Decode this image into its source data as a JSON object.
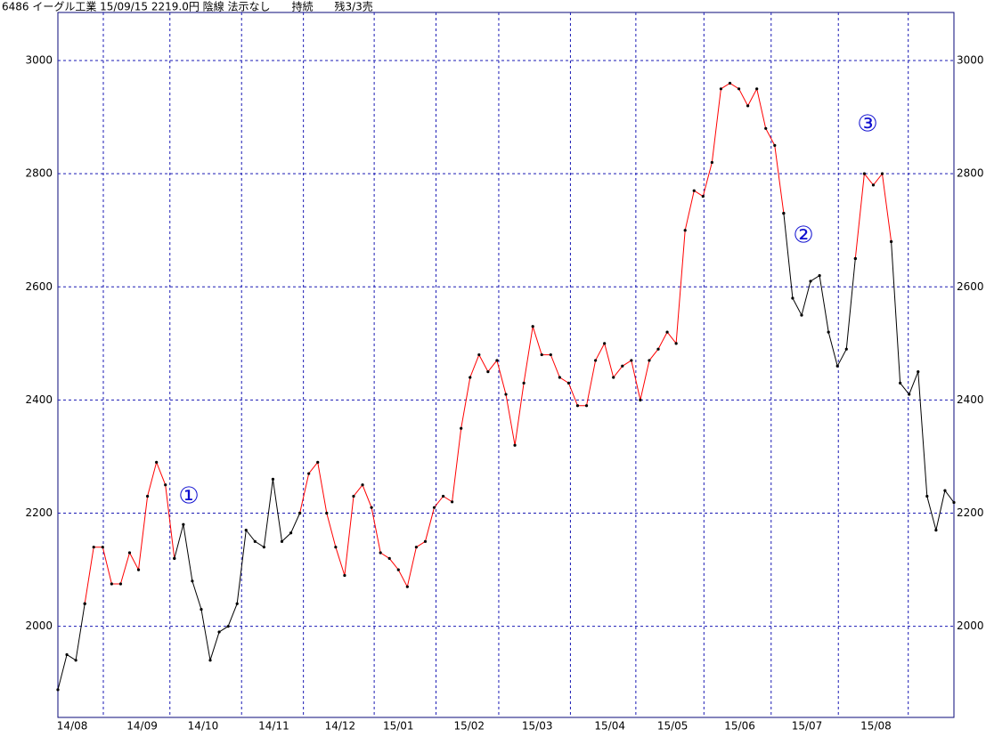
{
  "chart_data": {
    "type": "line",
    "title": "6486 イーグル工業 15/09/15 2219.0円 陰線 法示なし　　持続　　残3/3売",
    "xlim": [
      0,
      100
    ],
    "xticks": [
      {
        "value": 1.6,
        "label": "14/08"
      },
      {
        "value": 9.4,
        "label": "14/09"
      },
      {
        "value": 16.2,
        "label": "14/10"
      },
      {
        "value": 24.1,
        "label": "14/11"
      },
      {
        "value": 31.5,
        "label": "14/12"
      },
      {
        "value": 38,
        "label": "15/01"
      },
      {
        "value": 45.9,
        "label": "15/02"
      },
      {
        "value": 53.5,
        "label": "15/03"
      },
      {
        "value": 61.6,
        "label": "15/04"
      },
      {
        "value": 68.6,
        "label": "15/05"
      },
      {
        "value": 76.1,
        "label": "15/06"
      },
      {
        "value": 83.6,
        "label": "15/07"
      },
      {
        "value": 91.3,
        "label": "15/08"
      }
    ],
    "xgrid": [
      5.07,
      12.5,
      20.5,
      27.4,
      35.3,
      42.2,
      49.2,
      57.2,
      64.5,
      72.1,
      79.6,
      87.1,
      94.9
    ],
    "ylim": [
      1839,
      3085
    ],
    "yticks": [
      2000,
      2200,
      2400,
      2600,
      2800,
      3000
    ],
    "grid": true,
    "series": [
      {
        "color": "#ff0000",
        "values": [
          null,
          null,
          null,
          2040,
          2140,
          2140,
          2075,
          2075,
          2130,
          2100,
          2230,
          2290,
          2250,
          2120,
          null,
          null,
          null,
          null,
          null,
          null,
          null,
          null,
          null,
          null,
          null,
          null,
          null,
          2200,
          2270,
          2290,
          2200,
          2140,
          2090,
          2230,
          2250,
          2210,
          2130,
          2120,
          2100,
          2070,
          2140,
          2150,
          2210,
          2230,
          2220,
          2350,
          2440,
          2480,
          2450,
          2470,
          2410,
          2320,
          2430,
          2530,
          2480,
          2480,
          2440,
          2430,
          2390,
          2390,
          2470,
          2500,
          2440,
          2460,
          2470,
          2400,
          2470,
          2490,
          2520,
          2500,
          2700,
          2770,
          2760,
          2820,
          2950,
          2960,
          2950,
          2920,
          2950,
          2880,
          2850,
          2730,
          null,
          null,
          null,
          null,
          null,
          null,
          null,
          2650,
          2800,
          2780,
          2800,
          2680,
          null,
          null,
          null,
          null,
          null,
          null,
          null
        ]
      },
      {
        "color": "#000000",
        "values": [
          1888,
          1950,
          1940,
          2040,
          null,
          null,
          null,
          null,
          null,
          null,
          null,
          null,
          null,
          2120,
          2180,
          2080,
          2030,
          1940,
          1990,
          2000,
          2040,
          2170,
          2150,
          2140,
          2260,
          2150,
          2165,
          2200,
          null,
          null,
          null,
          null,
          null,
          null,
          null,
          null,
          null,
          null,
          null,
          null,
          null,
          null,
          null,
          null,
          null,
          null,
          null,
          null,
          null,
          null,
          null,
          null,
          null,
          null,
          null,
          null,
          null,
          null,
          null,
          null,
          null,
          null,
          null,
          null,
          null,
          null,
          null,
          null,
          null,
          null,
          null,
          null,
          null,
          null,
          null,
          null,
          null,
          null,
          null,
          null,
          null,
          2730,
          2580,
          2550,
          2610,
          2620,
          2520,
          2460,
          2490,
          2650,
          null,
          null,
          null,
          2680,
          2430,
          2410,
          2450,
          2230,
          2170,
          2240,
          2219
        ]
      }
    ],
    "annotations": [
      {
        "text": "①"
      },
      {
        "text": "②"
      },
      {
        "text": "③"
      }
    ]
  }
}
